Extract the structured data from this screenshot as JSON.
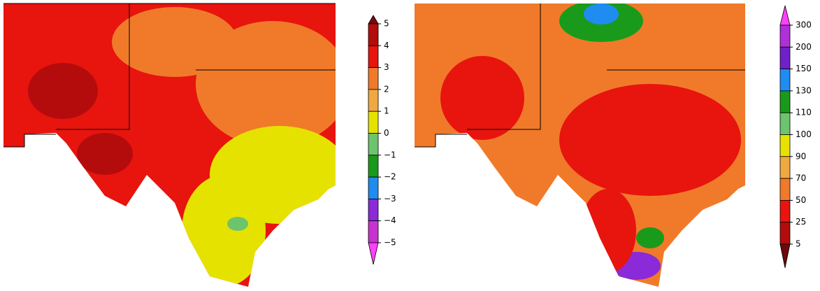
{
  "maps": [
    {
      "colorbar": {
        "labels": [
          "5",
          "4",
          "3",
          "2",
          "1",
          "0",
          "−1",
          "−2",
          "−3",
          "−4",
          "−5"
        ],
        "colors": [
          "#7a0a0a",
          "#b40c0c",
          "#e8140e",
          "#f07a2a",
          "#f0a840",
          "#e6e200",
          "#6cc46c",
          "#1a9a1a",
          "#1e8cf0",
          "#8a2ad8",
          "#c832d0",
          "#ff40ff"
        ]
      }
    },
    {
      "colorbar": {
        "labels": [
          "300",
          "200",
          "150",
          "130",
          "110",
          "100",
          "90",
          "70",
          "50",
          "25",
          "5"
        ],
        "colors": [
          "#ff40ff",
          "#b030d8",
          "#7020c8",
          "#1e8cf0",
          "#1a9a1a",
          "#6cc46c",
          "#e6e200",
          "#f0a840",
          "#f07a2a",
          "#e8140e",
          "#b40c0c",
          "#6a0a0a"
        ]
      }
    }
  ]
}
